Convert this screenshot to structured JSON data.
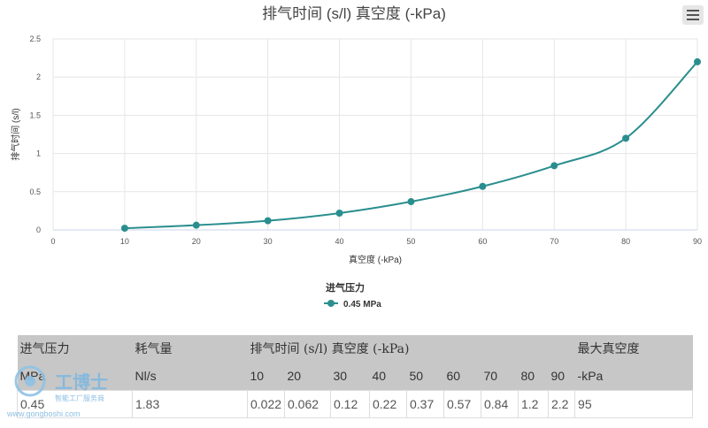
{
  "chart_data": {
    "type": "line",
    "title": "排气时间 (s/l) 真空度 (-kPa)",
    "xlabel": "真空度 (-kPa)",
    "ylabel": "排气时间 (s/l)",
    "xlim": [
      0,
      90
    ],
    "ylim": [
      0,
      2.5
    ],
    "x_ticks": [
      "0",
      "10",
      "20",
      "30",
      "40",
      "50",
      "60",
      "70",
      "80",
      "90"
    ],
    "y_ticks": [
      "0",
      "0.5",
      "1",
      "1.5",
      "2",
      "2.5"
    ],
    "grid": true,
    "legend_title": "进气压力",
    "legend_position": "bottom-center",
    "series": [
      {
        "name": "0.45 MPa",
        "color": "#2a8e8e",
        "x": [
          10,
          20,
          30,
          40,
          50,
          60,
          70,
          80,
          90
        ],
        "y": [
          0.022,
          0.062,
          0.12,
          0.22,
          0.37,
          0.57,
          0.84,
          1.2,
          2.2
        ]
      }
    ]
  },
  "table": {
    "header1": {
      "pressure": "进气压力",
      "consumption": "耗气量",
      "exhaust_time": "排气时间 (s/l) 真空度 (-kPa)",
      "max_vacuum": "最大真空度"
    },
    "header2": {
      "pressure_unit": "MPa",
      "consumption_unit": "Nl/s",
      "vacuum_levels": [
        "10",
        "20",
        "30",
        "40",
        "50",
        "60",
        "70",
        "80",
        "90"
      ],
      "max_vacuum_unit": "-kPa"
    },
    "row": {
      "pressure": "0.45",
      "consumption": "1.83",
      "times": [
        "0.022",
        "0.062",
        "0.12",
        "0.22",
        "0.37",
        "0.57",
        "0.84",
        "1.2",
        "2.2"
      ],
      "max_vacuum": "95"
    }
  },
  "watermark": {
    "brand": "工博士",
    "tagline": "智能工厂服务商",
    "url": "www.gongboshi.com"
  }
}
